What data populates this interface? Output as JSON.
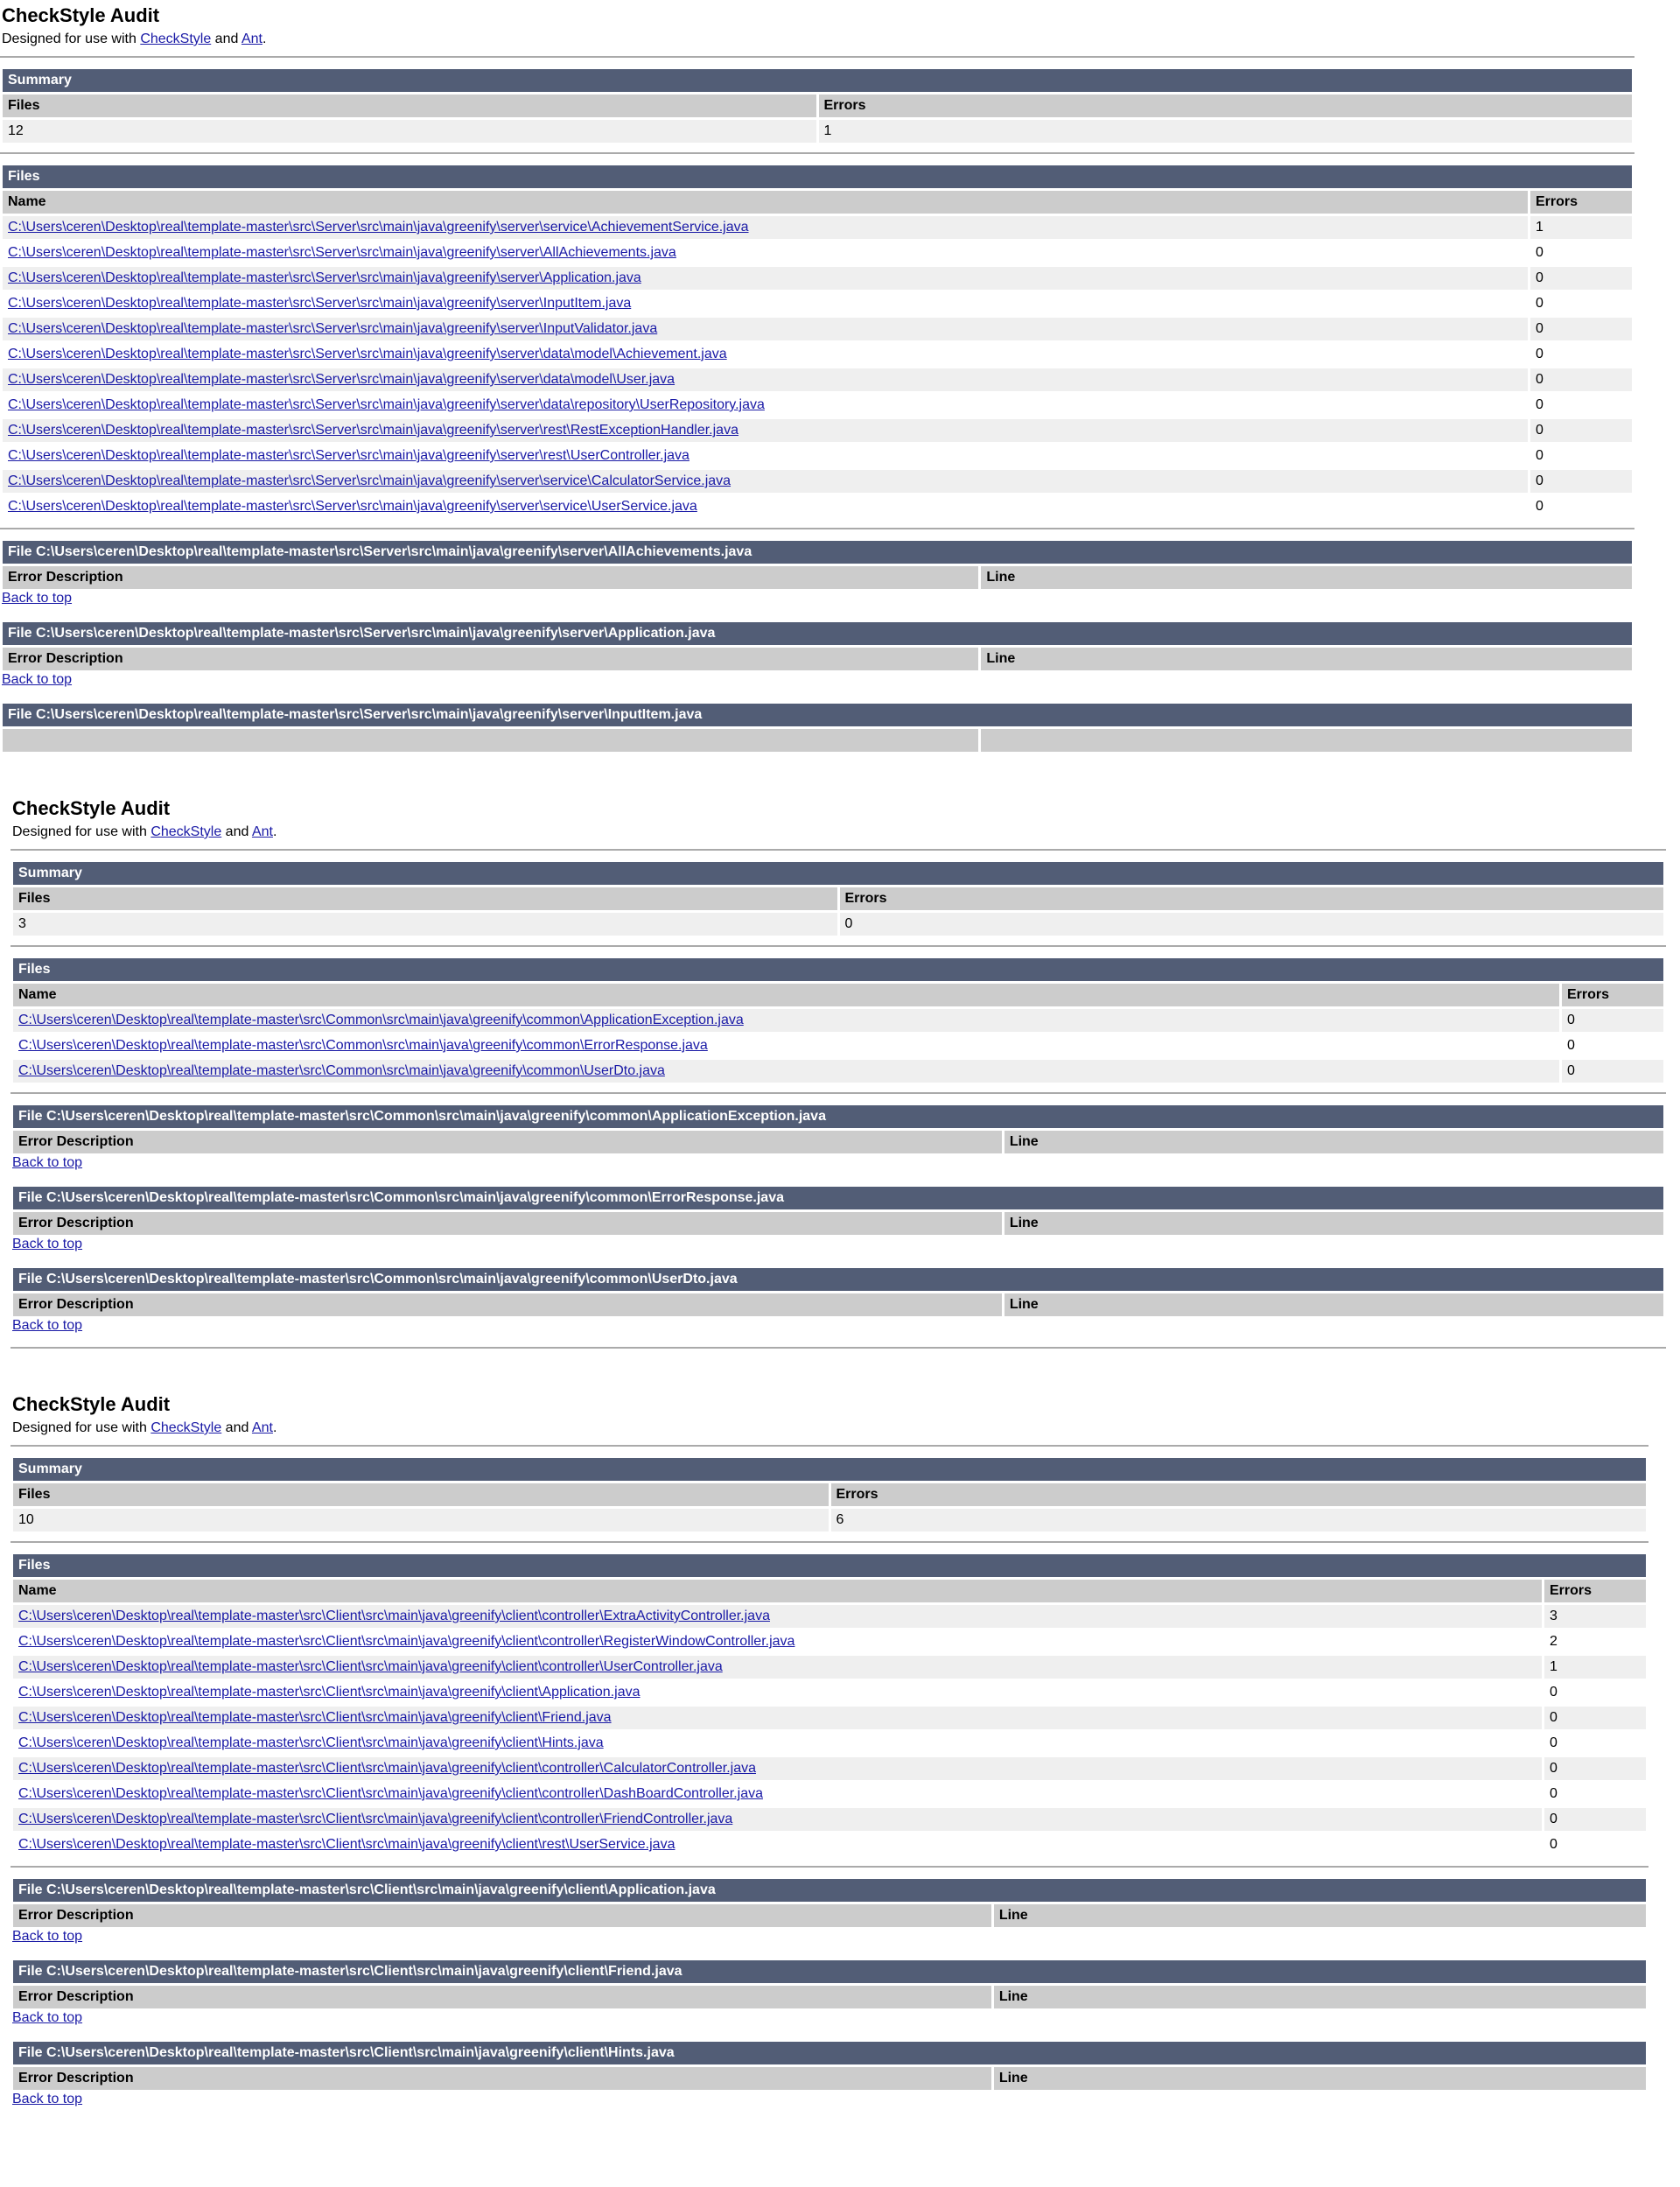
{
  "colors": {
    "header_bar": "#525D76",
    "header_row": "#CCCCCC",
    "row_alt": "#EFEFEF",
    "link": "#1A1AA6"
  },
  "reports": [
    {
      "title": "CheckStyle Audit",
      "subtitle_prefix": "Designed for use with ",
      "link1": "CheckStyle",
      "subtitle_mid": " and ",
      "link2": "Ant",
      "subtitle_suffix": ".",
      "summary": {
        "heading": "Summary",
        "col_files": "Files",
        "col_errors": "Errors",
        "files": "12",
        "errors": "1"
      },
      "files": {
        "heading": "Files",
        "col_name": "Name",
        "col_errors": "Errors",
        "rows": [
          {
            "name": "C:\\Users\\ceren\\Desktop\\real\\template-master\\src\\Server\\src\\main\\java\\greenify\\server\\service\\AchievementService.java",
            "errors": "1"
          },
          {
            "name": "C:\\Users\\ceren\\Desktop\\real\\template-master\\src\\Server\\src\\main\\java\\greenify\\server\\AllAchievements.java",
            "errors": "0"
          },
          {
            "name": "C:\\Users\\ceren\\Desktop\\real\\template-master\\src\\Server\\src\\main\\java\\greenify\\server\\Application.java",
            "errors": "0"
          },
          {
            "name": "C:\\Users\\ceren\\Desktop\\real\\template-master\\src\\Server\\src\\main\\java\\greenify\\server\\InputItem.java",
            "errors": "0"
          },
          {
            "name": "C:\\Users\\ceren\\Desktop\\real\\template-master\\src\\Server\\src\\main\\java\\greenify\\server\\InputValidator.java",
            "errors": "0"
          },
          {
            "name": "C:\\Users\\ceren\\Desktop\\real\\template-master\\src\\Server\\src\\main\\java\\greenify\\server\\data\\model\\Achievement.java",
            "errors": "0"
          },
          {
            "name": "C:\\Users\\ceren\\Desktop\\real\\template-master\\src\\Server\\src\\main\\java\\greenify\\server\\data\\model\\User.java",
            "errors": "0"
          },
          {
            "name": "C:\\Users\\ceren\\Desktop\\real\\template-master\\src\\Server\\src\\main\\java\\greenify\\server\\data\\repository\\UserRepository.java",
            "errors": "0"
          },
          {
            "name": "C:\\Users\\ceren\\Desktop\\real\\template-master\\src\\Server\\src\\main\\java\\greenify\\server\\rest\\RestExceptionHandler.java",
            "errors": "0"
          },
          {
            "name": "C:\\Users\\ceren\\Desktop\\real\\template-master\\src\\Server\\src\\main\\java\\greenify\\server\\rest\\UserController.java",
            "errors": "0"
          },
          {
            "name": "C:\\Users\\ceren\\Desktop\\real\\template-master\\src\\Server\\src\\main\\java\\greenify\\server\\service\\CalculatorService.java",
            "errors": "0"
          },
          {
            "name": "C:\\Users\\ceren\\Desktop\\real\\template-master\\src\\Server\\src\\main\\java\\greenify\\server\\service\\UserService.java",
            "errors": "0"
          }
        ]
      },
      "details": [
        {
          "heading": "File C:\\Users\\ceren\\Desktop\\real\\template-master\\src\\Server\\src\\main\\java\\greenify\\server\\AllAchievements.java",
          "col_desc": "Error Description",
          "col_line": "Line",
          "back": "Back to top"
        },
        {
          "heading": "File C:\\Users\\ceren\\Desktop\\real\\template-master\\src\\Server\\src\\main\\java\\greenify\\server\\Application.java",
          "col_desc": "Error Description",
          "col_line": "Line",
          "back": "Back to top"
        },
        {
          "heading": "File C:\\Users\\ceren\\Desktop\\real\\template-master\\src\\Server\\src\\main\\java\\greenify\\server\\InputItem.java",
          "col_desc": "",
          "col_line": "",
          "back": ""
        }
      ]
    },
    {
      "title": "CheckStyle Audit",
      "subtitle_prefix": "Designed for use with ",
      "link1": "CheckStyle",
      "subtitle_mid": " and ",
      "link2": "Ant",
      "subtitle_suffix": ".",
      "summary": {
        "heading": "Summary",
        "col_files": "Files",
        "col_errors": "Errors",
        "files": "3",
        "errors": "0"
      },
      "files": {
        "heading": "Files",
        "col_name": "Name",
        "col_errors": "Errors",
        "rows": [
          {
            "name": "C:\\Users\\ceren\\Desktop\\real\\template-master\\src\\Common\\src\\main\\java\\greenify\\common\\ApplicationException.java",
            "errors": "0"
          },
          {
            "name": "C:\\Users\\ceren\\Desktop\\real\\template-master\\src\\Common\\src\\main\\java\\greenify\\common\\ErrorResponse.java",
            "errors": "0"
          },
          {
            "name": "C:\\Users\\ceren\\Desktop\\real\\template-master\\src\\Common\\src\\main\\java\\greenify\\common\\UserDto.java",
            "errors": "0"
          }
        ]
      },
      "details": [
        {
          "heading": "File C:\\Users\\ceren\\Desktop\\real\\template-master\\src\\Common\\src\\main\\java\\greenify\\common\\ApplicationException.java",
          "col_desc": "Error Description",
          "col_line": "Line",
          "back": "Back to top"
        },
        {
          "heading": "File C:\\Users\\ceren\\Desktop\\real\\template-master\\src\\Common\\src\\main\\java\\greenify\\common\\ErrorResponse.java",
          "col_desc": "Error Description",
          "col_line": "Line",
          "back": "Back to top"
        },
        {
          "heading": "File C:\\Users\\ceren\\Desktop\\real\\template-master\\src\\Common\\src\\main\\java\\greenify\\common\\UserDto.java",
          "col_desc": "Error Description",
          "col_line": "Line",
          "back": "Back to top"
        }
      ]
    },
    {
      "title": "CheckStyle Audit",
      "subtitle_prefix": "Designed for use with ",
      "link1": "CheckStyle",
      "subtitle_mid": " and ",
      "link2": "Ant",
      "subtitle_suffix": ".",
      "summary": {
        "heading": "Summary",
        "col_files": "Files",
        "col_errors": "Errors",
        "files": "10",
        "errors": "6"
      },
      "files": {
        "heading": "Files",
        "col_name": "Name",
        "col_errors": "Errors",
        "rows": [
          {
            "name": "C:\\Users\\ceren\\Desktop\\real\\template-master\\src\\Client\\src\\main\\java\\greenify\\client\\controller\\ExtraActivityController.java",
            "errors": "3"
          },
          {
            "name": "C:\\Users\\ceren\\Desktop\\real\\template-master\\src\\Client\\src\\main\\java\\greenify\\client\\controller\\RegisterWindowController.java",
            "errors": "2"
          },
          {
            "name": "C:\\Users\\ceren\\Desktop\\real\\template-master\\src\\Client\\src\\main\\java\\greenify\\client\\controller\\UserController.java",
            "errors": "1"
          },
          {
            "name": "C:\\Users\\ceren\\Desktop\\real\\template-master\\src\\Client\\src\\main\\java\\greenify\\client\\Application.java",
            "errors": "0"
          },
          {
            "name": "C:\\Users\\ceren\\Desktop\\real\\template-master\\src\\Client\\src\\main\\java\\greenify\\client\\Friend.java",
            "errors": "0"
          },
          {
            "name": "C:\\Users\\ceren\\Desktop\\real\\template-master\\src\\Client\\src\\main\\java\\greenify\\client\\Hints.java",
            "errors": "0"
          },
          {
            "name": "C:\\Users\\ceren\\Desktop\\real\\template-master\\src\\Client\\src\\main\\java\\greenify\\client\\controller\\CalculatorController.java",
            "errors": "0"
          },
          {
            "name": "C:\\Users\\ceren\\Desktop\\real\\template-master\\src\\Client\\src\\main\\java\\greenify\\client\\controller\\DashBoardController.java",
            "errors": "0"
          },
          {
            "name": "C:\\Users\\ceren\\Desktop\\real\\template-master\\src\\Client\\src\\main\\java\\greenify\\client\\controller\\FriendController.java",
            "errors": "0"
          },
          {
            "name": "C:\\Users\\ceren\\Desktop\\real\\template-master\\src\\Client\\src\\main\\java\\greenify\\client\\rest\\UserService.java",
            "errors": "0"
          }
        ]
      },
      "details": [
        {
          "heading": "File C:\\Users\\ceren\\Desktop\\real\\template-master\\src\\Client\\src\\main\\java\\greenify\\client\\Application.java",
          "col_desc": "Error Description",
          "col_line": "Line",
          "back": "Back to top"
        },
        {
          "heading": "File C:\\Users\\ceren\\Desktop\\real\\template-master\\src\\Client\\src\\main\\java\\greenify\\client\\Friend.java",
          "col_desc": "Error Description",
          "col_line": "Line",
          "back": "Back to top"
        },
        {
          "heading": "File C:\\Users\\ceren\\Desktop\\real\\template-master\\src\\Client\\src\\main\\java\\greenify\\client\\Hints.java",
          "col_desc": "Error Description",
          "col_line": "Line",
          "back": "Back to top"
        }
      ]
    }
  ]
}
